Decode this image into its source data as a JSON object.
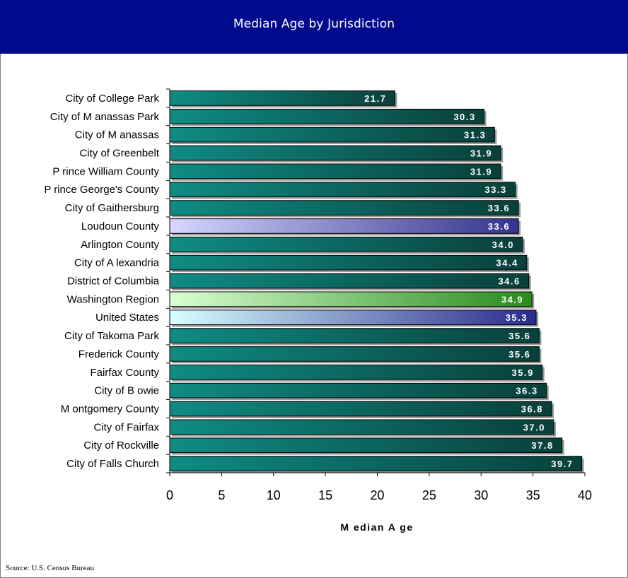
{
  "header": {
    "title": "Median Age by Jurisdiction"
  },
  "source": "Source: U.S. Census Bureau",
  "colors": {
    "header_bg": "#000a8c",
    "default_bar": [
      "#0e8c84",
      "#0a3f3a"
    ],
    "loudoun_bar": [
      "#d6d6ff",
      "#33338c"
    ],
    "region_bar": [
      "#d9ffd0",
      "#2a8a1e"
    ],
    "us_bar": [
      "#d8ffff",
      "#2a2a8c"
    ]
  },
  "chart_data": {
    "type": "bar",
    "orientation": "horizontal",
    "title": "Median Age by Jurisdiction",
    "xlabel": "M edian A ge",
    "xlim": [
      0,
      40
    ],
    "xticks": [
      0,
      5,
      10,
      15,
      20,
      25,
      30,
      35,
      40
    ],
    "grid": false,
    "categories": [
      "City of College Park",
      "City of M anassas Park",
      "City of M anassas",
      "City of Greenbelt",
      "P rince William County",
      "P rince George's County",
      "City of Gaithersburg",
      "Loudoun County",
      "Arlington County",
      "City of A lexandria",
      "District of Columbia",
      "Washington Region",
      "United States",
      "City of Takoma Park",
      "Frederick County",
      "Fairfax County",
      "City of B owie",
      "M ontgomery County",
      "City of Fairfax",
      "City of Rockville",
      "City of Falls Church"
    ],
    "values": [
      21.7,
      30.3,
      31.3,
      31.9,
      31.9,
      33.3,
      33.6,
      33.6,
      34.0,
      34.4,
      34.6,
      34.9,
      35.3,
      35.6,
      35.6,
      35.9,
      36.3,
      36.8,
      37.0,
      37.8,
      39.7
    ],
    "value_labels": [
      "21.7",
      "30.3",
      "31.3",
      "31.9",
      "31.9",
      "33.3",
      "33.6",
      "33.6",
      "34.0",
      "34.4",
      "34.6",
      "34.9",
      "35.3",
      "35.6",
      "35.6",
      "35.9",
      "36.3",
      "36.8",
      "37.0",
      "37.8",
      "39.7"
    ],
    "highlights": {
      "Loudoun County": "loudoun_bar",
      "Washington Region": "region_bar",
      "United States": "us_bar"
    }
  }
}
